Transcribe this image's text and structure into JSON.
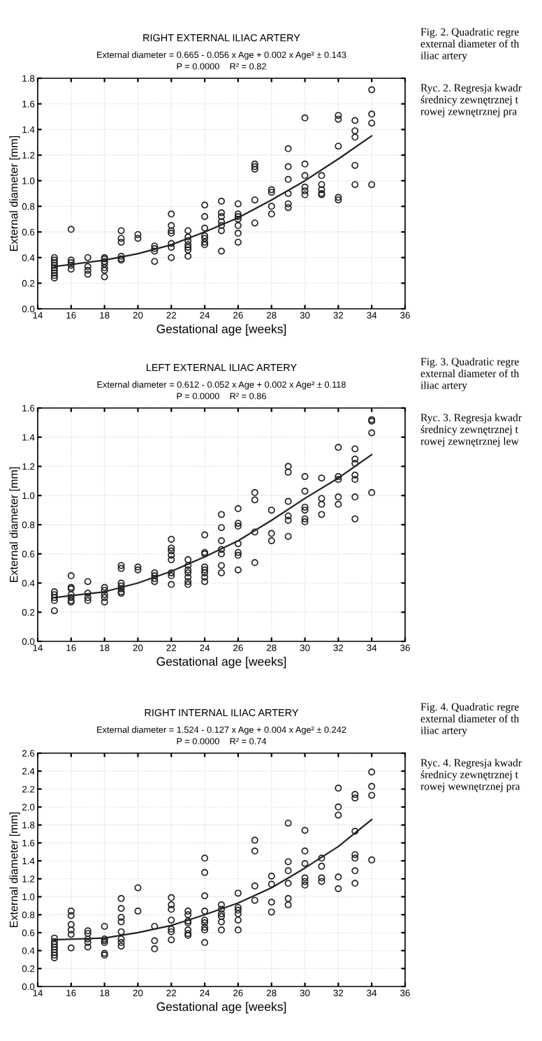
{
  "chart_data": [
    {
      "type": "scatter",
      "title": "RIGHT EXTERNAL ILIAC ARTERY",
      "subtitle": "External diameter = 0.665 - 0.056 x Age + 0.002 x Age² ± 0.143\nP = 0.0000    R² = 0.82",
      "xlabel": "Gestational age [weeks]",
      "ylabel": "External diameter [mm]",
      "annotations": [
        "Fig. 2. Quadratic regre\nexternal diameter of th\niliac artery",
        "Ryc. 2. Regresja kwadr\nśrednicy zewnętrznej t\nrowej zewnętrznej pra"
      ],
      "xlim": [
        14,
        36
      ],
      "xticks": [
        14,
        16,
        18,
        20,
        22,
        24,
        26,
        28,
        30,
        32,
        34,
        36
      ],
      "ylim": [
        0.0,
        1.8
      ],
      "yticks": [
        {
          "value": 0,
          "label": "0.0"
        },
        0.2,
        0.4,
        0.6,
        0.8,
        {
          "value": 1,
          "label": "1.0"
        },
        1.2,
        1.4,
        1.6,
        1.8
      ],
      "grid": true,
      "series": [
        {
          "type": "scatter",
          "color": "#222222",
          "marker": "circle",
          "x": [
            15,
            15,
            15,
            15,
            15,
            15,
            15,
            15,
            15,
            16,
            16,
            16,
            16,
            16,
            17,
            17,
            17,
            17,
            18,
            18,
            18,
            18,
            18,
            18,
            18,
            19,
            19,
            19,
            19,
            19,
            19,
            20,
            20,
            21,
            21,
            21,
            21,
            22,
            22,
            22,
            22,
            22,
            22,
            22,
            23,
            23,
            23,
            23,
            23,
            23,
            23,
            24,
            24,
            24,
            24,
            24,
            24,
            24,
            25,
            25,
            25,
            25,
            25,
            25,
            25,
            26,
            26,
            26,
            26,
            26,
            26,
            26,
            27,
            27,
            27,
            27,
            27,
            28,
            28,
            28,
            28,
            29,
            29,
            29,
            29,
            29,
            29,
            30,
            30,
            30,
            30,
            30,
            30,
            31,
            31,
            31,
            31,
            31,
            32,
            32,
            32,
            32,
            32,
            33,
            33,
            33,
            33,
            33,
            34,
            34,
            34,
            34
          ],
          "values": [
            0.4,
            0.38,
            0.36,
            0.34,
            0.32,
            0.3,
            0.28,
            0.26,
            0.24,
            0.62,
            0.38,
            0.36,
            0.34,
            0.31,
            0.4,
            0.33,
            0.3,
            0.27,
            0.4,
            0.39,
            0.37,
            0.35,
            0.32,
            0.3,
            0.25,
            0.61,
            0.55,
            0.52,
            0.41,
            0.39,
            0.38,
            0.58,
            0.55,
            0.49,
            0.47,
            0.45,
            0.37,
            0.74,
            0.65,
            0.61,
            0.59,
            0.51,
            0.48,
            0.4,
            0.61,
            0.56,
            0.53,
            0.5,
            0.48,
            0.46,
            0.41,
            0.81,
            0.72,
            0.63,
            0.57,
            0.55,
            0.52,
            0.5,
            0.84,
            0.75,
            0.72,
            0.68,
            0.65,
            0.61,
            0.45,
            0.82,
            0.74,
            0.72,
            0.7,
            0.65,
            0.59,
            0.52,
            1.13,
            1.11,
            1.09,
            0.85,
            0.67,
            0.93,
            0.91,
            0.8,
            0.74,
            1.25,
            1.11,
            1.01,
            0.9,
            0.82,
            0.79,
            1.49,
            1.13,
            1.04,
            0.95,
            0.92,
            0.89,
            1.04,
            0.97,
            0.93,
            0.9,
            0.89,
            1.51,
            1.48,
            1.27,
            0.87,
            0.85,
            1.47,
            1.39,
            1.34,
            1.12,
            0.97,
            1.71,
            1.52,
            1.45,
            0.97
          ]
        },
        {
          "type": "line",
          "color": "#222222",
          "marker": "none",
          "line_style": "solid",
          "x": [
            15,
            18,
            20,
            22,
            24,
            26,
            28,
            30,
            32,
            34
          ],
          "values": [
            0.33,
            0.38,
            0.43,
            0.5,
            0.6,
            0.71,
            0.85,
            1.0,
            1.17,
            1.35
          ]
        }
      ]
    },
    {
      "type": "scatter",
      "title": "LEFT EXTERNAL ILIAC ARTERY",
      "subtitle": "External diameter = 0.612 - 0.052 x Age + 0.002 x Age² ± 0.118\nP = 0.0000    R² = 0.86",
      "xlabel": "Gestational age [weeks]",
      "ylabel": "External diameter [mm]",
      "annotations": [
        "Fig. 3. Quadratic regre\nexternal diameter of th\niliac artery",
        "Ryc. 3. Regresja kwadr\nśrednicy zewnętrznej t\nrowej zewnętrznej lew"
      ],
      "xlim": [
        14,
        36
      ],
      "xticks": [
        14,
        16,
        18,
        20,
        22,
        24,
        26,
        28,
        30,
        32,
        34,
        36
      ],
      "ylim": [
        0.0,
        1.6
      ],
      "yticks": [
        {
          "value": 0,
          "label": "0.0"
        },
        0.2,
        0.4,
        0.6,
        0.8,
        {
          "value": 1,
          "label": "1.0"
        },
        1.2,
        1.4,
        1.6
      ],
      "grid": true,
      "series": [
        {
          "type": "scatter",
          "color": "#222222",
          "marker": "circle",
          "x": [
            15,
            15,
            15,
            15,
            15,
            16,
            16,
            16,
            16,
            16,
            16,
            16,
            17,
            17,
            17,
            17,
            18,
            18,
            18,
            18,
            18,
            19,
            19,
            19,
            19,
            19,
            19,
            19,
            20,
            20,
            21,
            21,
            21,
            21,
            22,
            22,
            22,
            22,
            22,
            22,
            22,
            22,
            23,
            23,
            23,
            23,
            23,
            23,
            23,
            24,
            24,
            24,
            24,
            24,
            24,
            24,
            24,
            25,
            25,
            25,
            25,
            25,
            25,
            25,
            26,
            26,
            26,
            26,
            26,
            26,
            26,
            27,
            27,
            27,
            27,
            28,
            28,
            28,
            29,
            29,
            29,
            29,
            29,
            29,
            30,
            30,
            30,
            30,
            30,
            30,
            31,
            31,
            31,
            31,
            32,
            32,
            32,
            32,
            32,
            33,
            33,
            33,
            33,
            33,
            33,
            33,
            34,
            34,
            34,
            34
          ],
          "values": [
            0.34,
            0.32,
            0.3,
            0.28,
            0.21,
            0.45,
            0.37,
            0.36,
            0.32,
            0.3,
            0.28,
            0.27,
            0.41,
            0.33,
            0.3,
            0.28,
            0.37,
            0.35,
            0.32,
            0.3,
            0.27,
            0.52,
            0.5,
            0.4,
            0.38,
            0.36,
            0.34,
            0.33,
            0.51,
            0.49,
            0.47,
            0.45,
            0.43,
            0.41,
            0.7,
            0.64,
            0.62,
            0.59,
            0.56,
            0.47,
            0.45,
            0.39,
            0.56,
            0.52,
            0.49,
            0.47,
            0.44,
            0.41,
            0.39,
            0.73,
            0.61,
            0.6,
            0.51,
            0.49,
            0.47,
            0.44,
            0.41,
            0.87,
            0.78,
            0.69,
            0.63,
            0.6,
            0.52,
            0.47,
            0.91,
            0.81,
            0.79,
            0.67,
            0.61,
            0.59,
            0.49,
            1.02,
            0.97,
            0.75,
            0.54,
            0.9,
            0.74,
            0.69,
            1.2,
            1.16,
            0.96,
            0.86,
            0.83,
            0.72,
            1.13,
            1.03,
            0.92,
            0.9,
            0.84,
            0.82,
            1.12,
            0.98,
            0.94,
            0.87,
            1.33,
            1.13,
            1.11,
            0.99,
            0.94,
            1.32,
            1.25,
            1.22,
            1.14,
            1.11,
            0.99,
            0.84,
            1.52,
            1.51,
            1.43,
            1.02
          ]
        },
        {
          "type": "line",
          "color": "#222222",
          "marker": "none",
          "line_style": "solid",
          "x": [
            15,
            18,
            20,
            22,
            24,
            26,
            28,
            30,
            32,
            34
          ],
          "values": [
            0.3,
            0.34,
            0.4,
            0.48,
            0.58,
            0.69,
            0.83,
            0.98,
            1.12,
            1.28
          ]
        }
      ]
    },
    {
      "type": "scatter",
      "title": "RIGHT INTERNAL ILIAC ARTERY",
      "subtitle": "External diameter = 1.524 - 0.127 x Age + 0.004 x Age² ± 0.242\nP = 0.0000    R² = 0.74",
      "xlabel": "Gestational age [weeks]",
      "ylabel": "External diameter [mm]",
      "annotations": [
        "Fig. 4. Quadratic regre\nexternal diameter of th\niliac artery",
        "Ryc. 4. Regresja kwadr\nśrednicy zewnętrznej t\nrowej wewnętrznej pra"
      ],
      "xlim": [
        14,
        36
      ],
      "xticks": [
        14,
        16,
        18,
        20,
        22,
        24,
        26,
        28,
        30,
        32,
        34,
        36
      ],
      "ylim": [
        0.0,
        2.6
      ],
      "yticks": [
        {
          "value": 0,
          "label": "0.0"
        },
        0.2,
        0.4,
        0.6,
        0.8,
        {
          "value": 1,
          "label": "1.0"
        },
        1.2,
        1.4,
        1.6,
        1.8,
        {
          "value": 2,
          "label": "2.0"
        },
        2.2,
        2.4,
        2.6
      ],
      "grid": true,
      "series": [
        {
          "type": "scatter",
          "color": "#222222",
          "marker": "circle",
          "x": [
            15,
            15,
            15,
            15,
            15,
            15,
            15,
            15,
            16,
            16,
            16,
            16,
            16,
            16,
            17,
            17,
            17,
            17,
            17,
            18,
            18,
            18,
            18,
            18,
            18,
            19,
            19,
            19,
            19,
            19,
            19,
            19,
            19,
            20,
            20,
            21,
            21,
            21,
            22,
            22,
            22,
            22,
            22,
            22,
            22,
            23,
            23,
            23,
            23,
            23,
            23,
            23,
            24,
            24,
            24,
            24,
            24,
            24,
            24,
            24,
            24,
            25,
            25,
            25,
            25,
            25,
            25,
            26,
            26,
            26,
            26,
            26,
            26,
            27,
            27,
            27,
            27,
            28,
            28,
            28,
            28,
            29,
            29,
            29,
            29,
            29,
            29,
            30,
            30,
            30,
            30,
            30,
            30,
            31,
            31,
            31,
            31,
            32,
            32,
            32,
            32,
            32,
            33,
            33,
            33,
            33,
            33,
            33,
            33,
            34,
            34,
            34,
            34
          ],
          "values": [
            0.54,
            0.5,
            0.47,
            0.44,
            0.41,
            0.38,
            0.35,
            0.32,
            0.84,
            0.79,
            0.69,
            0.63,
            0.58,
            0.43,
            0.62,
            0.59,
            0.53,
            0.49,
            0.44,
            0.67,
            0.53,
            0.51,
            0.49,
            0.37,
            0.35,
            0.98,
            0.87,
            0.77,
            0.72,
            0.61,
            0.53,
            0.49,
            0.45,
            1.1,
            0.84,
            0.67,
            0.51,
            0.42,
            0.99,
            0.91,
            0.86,
            0.74,
            0.64,
            0.61,
            0.52,
            0.84,
            0.8,
            0.73,
            0.71,
            0.63,
            0.59,
            0.57,
            1.43,
            1.27,
            1.01,
            0.84,
            0.74,
            0.71,
            0.66,
            0.63,
            0.49,
            0.91,
            0.86,
            0.81,
            0.78,
            0.72,
            0.63,
            1.04,
            0.88,
            0.85,
            0.81,
            0.74,
            0.63,
            1.63,
            1.51,
            1.12,
            0.96,
            1.23,
            1.14,
            0.94,
            0.83,
            1.82,
            1.39,
            1.29,
            1.15,
            0.98,
            0.91,
            1.74,
            1.51,
            1.37,
            1.21,
            1.17,
            1.13,
            1.43,
            1.34,
            1.21,
            1.17,
            2.21,
            2.0,
            1.91,
            1.22,
            1.09,
            2.14,
            2.1,
            1.73,
            1.47,
            1.43,
            1.29,
            1.15,
            2.39,
            2.23,
            2.13,
            1.41
          ]
        },
        {
          "type": "line",
          "color": "#222222",
          "marker": "none",
          "line_style": "solid",
          "x": [
            15,
            18,
            20,
            22,
            24,
            26,
            28,
            30,
            32,
            34
          ],
          "values": [
            0.52,
            0.54,
            0.6,
            0.68,
            0.8,
            0.93,
            1.1,
            1.32,
            1.56,
            1.86
          ]
        }
      ]
    }
  ]
}
